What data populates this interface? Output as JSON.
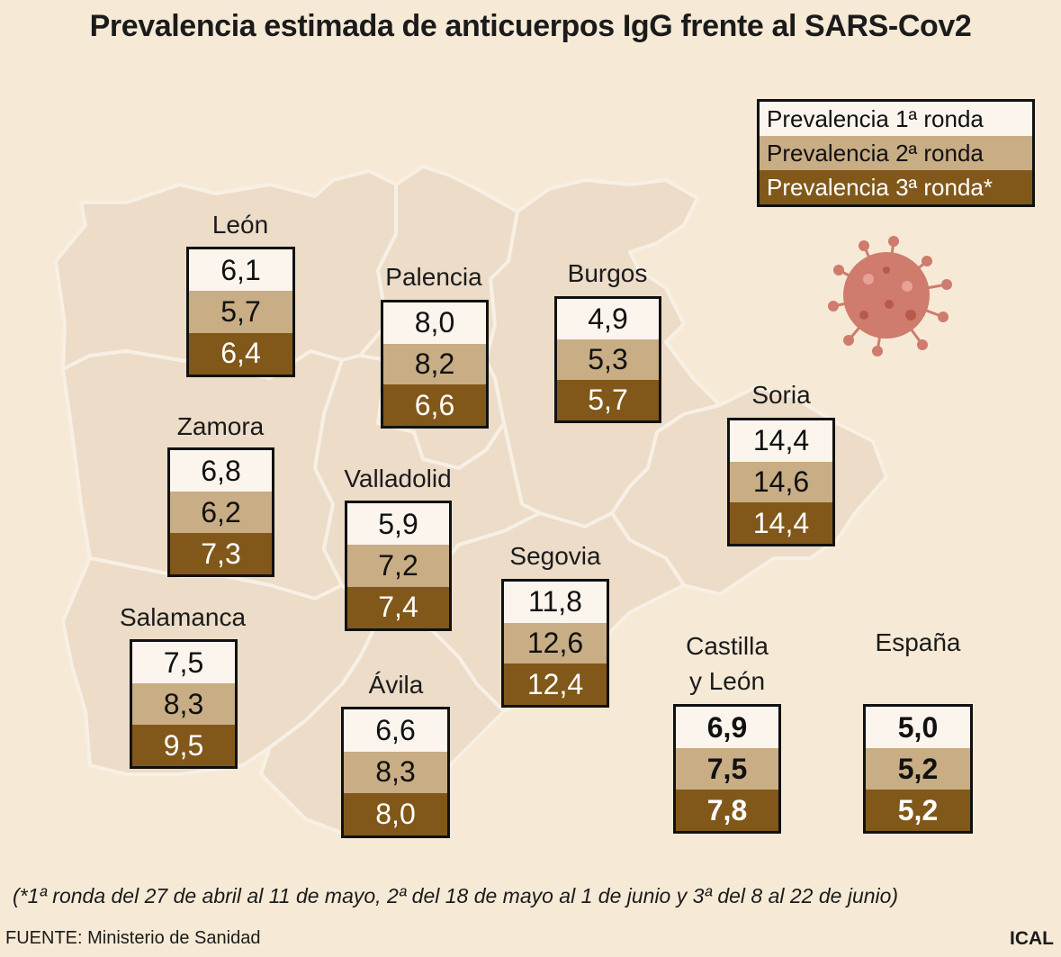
{
  "title": "Prevalencia estimada de anticuerpos IgG frente al SARS-Cov2",
  "legend": {
    "round1": "Prevalencia 1ª ronda",
    "round2": "Prevalencia 2ª ronda",
    "round3": "Prevalencia 3ª ronda*"
  },
  "colors": {
    "background": "#f6ead6",
    "province_fill": "#ecdcc8",
    "province_border": "#f8f0e4",
    "round1": "#fbf5ee",
    "round2": "#c8ad85",
    "round3": "#81581a",
    "virus": "#cf7b6e"
  },
  "regions": {
    "leon": {
      "name": "León",
      "r1": "6,1",
      "r2": "5,7",
      "r3": "6,4"
    },
    "palencia": {
      "name": "Palencia",
      "r1": "8,0",
      "r2": "8,2",
      "r3": "6,6"
    },
    "burgos": {
      "name": "Burgos",
      "r1": "4,9",
      "r2": "5,3",
      "r3": "5,7"
    },
    "soria": {
      "name": "Soria",
      "r1": "14,4",
      "r2": "14,6",
      "r3": "14,4"
    },
    "zamora": {
      "name": "Zamora",
      "r1": "6,8",
      "r2": "6,2",
      "r3": "7,3"
    },
    "valladolid": {
      "name": "Valladolid",
      "r1": "5,9",
      "r2": "7,2",
      "r3": "7,4"
    },
    "segovia": {
      "name": "Segovia",
      "r1": "11,8",
      "r2": "12,6",
      "r3": "12,4"
    },
    "salamanca": {
      "name": "Salamanca",
      "r1": "7,5",
      "r2": "8,3",
      "r3": "9,5"
    },
    "avila": {
      "name": "Ávila",
      "r1": "6,6",
      "r2": "8,3",
      "r3": "8,0"
    },
    "castilla_leon": {
      "name_line1": "Castilla",
      "name_line2": "y León",
      "r1": "6,9",
      "r2": "7,5",
      "r3": "7,8"
    },
    "espana": {
      "name": "España",
      "r1": "5,0",
      "r2": "5,2",
      "r3": "5,2"
    }
  },
  "decoration": {
    "icon": "coronavirus-icon"
  },
  "footnote": "(*1ª ronda del 27 de abril al 11 de mayo, 2ª del 18 de mayo al 1 de junio y 3ª del 8 al 22 de junio)",
  "source": "FUENTE: Ministerio de Sanidad",
  "credit": "ICAL"
}
